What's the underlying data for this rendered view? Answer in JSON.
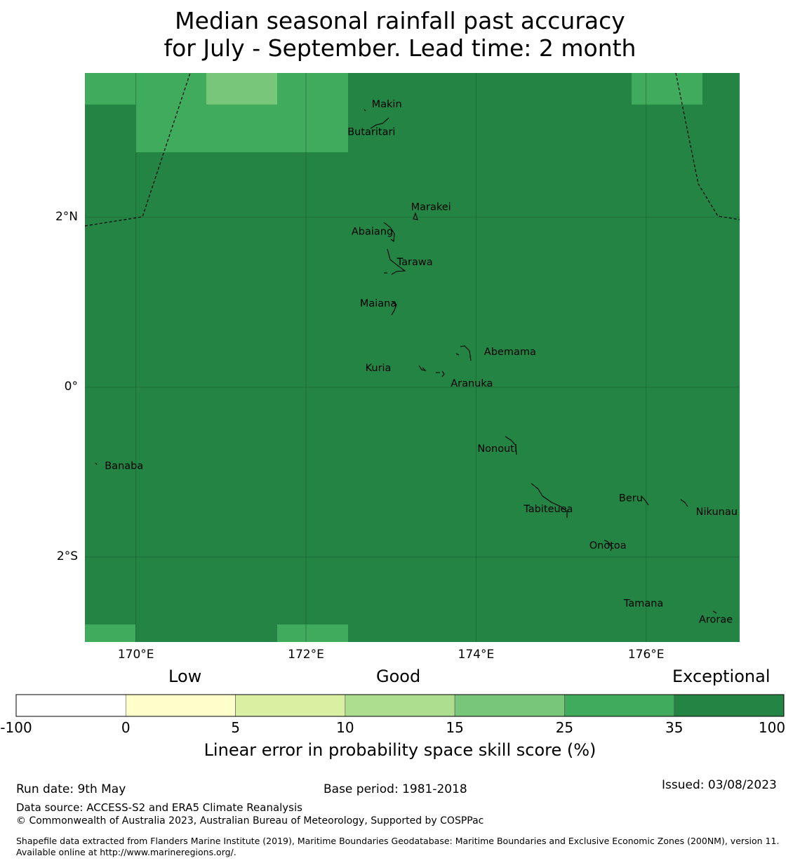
{
  "title": {
    "line1": "Median seasonal rainfall past accuracy",
    "line2": "for July - September. Lead time: 2 month"
  },
  "map": {
    "lon_range": [
      169.4,
      177.1
    ],
    "lat_range": [
      -3.0,
      3.7
    ],
    "lat_ticks": [
      {
        "value": 2,
        "label": "2°N"
      },
      {
        "value": 0,
        "label": "0°"
      },
      {
        "value": -2,
        "label": "2°S"
      }
    ],
    "lon_ticks": [
      {
        "value": 170,
        "label": "170°E"
      },
      {
        "value": 172,
        "label": "172°E"
      },
      {
        "value": 174,
        "label": "174°E"
      },
      {
        "value": 176,
        "label": "176°E"
      }
    ],
    "colors": {
      "exceptional": "#238443",
      "35_25": "#41ab5d",
      "25_15": "#78c679",
      "grid": "#1a5e30",
      "coast": "#000000",
      "boundary": "#000000"
    },
    "places": [
      {
        "name": "Makin",
        "lon": 172.95,
        "lat": 3.33
      },
      {
        "name": "Butaritari",
        "lon": 172.77,
        "lat": 3.0
      },
      {
        "name": "Marakei",
        "lon": 173.47,
        "lat": 2.12
      },
      {
        "name": "Abaiang",
        "lon": 172.78,
        "lat": 1.83
      },
      {
        "name": "Tarawa",
        "lon": 173.28,
        "lat": 1.47
      },
      {
        "name": "Maiana",
        "lon": 172.85,
        "lat": 0.98
      },
      {
        "name": "Abemama",
        "lon": 174.4,
        "lat": 0.41
      },
      {
        "name": "Kuria",
        "lon": 172.85,
        "lat": 0.22
      },
      {
        "name": "Aranuka",
        "lon": 173.95,
        "lat": 0.04
      },
      {
        "name": "Nonouti",
        "lon": 174.25,
        "lat": -0.73
      },
      {
        "name": "Banaba",
        "lon": 169.86,
        "lat": -0.93
      },
      {
        "name": "Beru",
        "lon": 175.82,
        "lat": -1.31
      },
      {
        "name": "Nikunau",
        "lon": 176.83,
        "lat": -1.47
      },
      {
        "name": "Tabiteuea",
        "lon": 174.85,
        "lat": -1.44
      },
      {
        "name": "Onotoa",
        "lon": 175.55,
        "lat": -1.87
      },
      {
        "name": "Tamana",
        "lon": 175.97,
        "lat": -2.55
      },
      {
        "name": "Arorae",
        "lon": 176.82,
        "lat": -2.74
      }
    ]
  },
  "legend": {
    "categories": [
      {
        "label": "Low"
      },
      {
        "label": "Good"
      },
      {
        "label": "Exceptional"
      }
    ],
    "bins": [
      {
        "from": "-100",
        "to": "0",
        "color": "#ffffff"
      },
      {
        "from": "0",
        "to": "5",
        "color": "#ffffcc"
      },
      {
        "from": "5",
        "to": "10",
        "color": "#d9f0a3"
      },
      {
        "from": "10",
        "to": "15",
        "color": "#addd8e"
      },
      {
        "from": "15",
        "to": "25",
        "color": "#78c679"
      },
      {
        "from": "25",
        "to": "35",
        "color": "#41ab5d"
      },
      {
        "from": "35",
        "to": "100",
        "color": "#238443"
      }
    ],
    "ticks": [
      "-100",
      "0",
      "5",
      "10",
      "15",
      "25",
      "35",
      "100"
    ],
    "label": "Linear error in probability space skill score (%)"
  },
  "footer": {
    "run_date": "Run date: 9th May",
    "base_period": "Base period: 1981-2018",
    "issued": "Issued: 03/08/2023",
    "data_source": "Data source: ACCESS-S2 and ERA5 Climate Reanalysis",
    "copyright": "© Commonwealth of Australia 2023, Australian Bureau of Meteorology, Supported by COSPPac",
    "shapefile": "Shapefile data extracted from Flanders Marine Institute (2019), Maritime Boundaries Geodatabase: Maritime Boundaries and Exclusive Economic Zones (200NM), version 11. Available online at http://www.marineregions.org/."
  }
}
